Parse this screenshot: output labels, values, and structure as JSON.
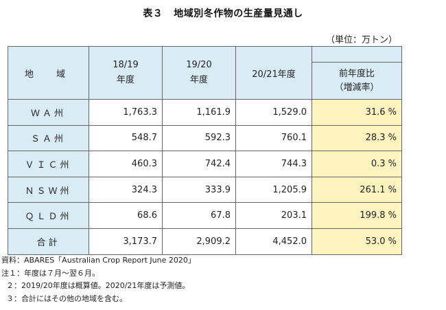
{
  "title": {
    "number": "表３",
    "text": "地域別冬作物の生産量見通し"
  },
  "unit_label": "（単位：万トン）",
  "table": {
    "headers": {
      "region": "地　域",
      "y1819_line1": "18/19",
      "y1819_line2": "年度",
      "y1920_line1": "19/20",
      "y1920_line2": "年度",
      "y2021": "20/21年度",
      "ratio_line1": "前年度比",
      "ratio_line2": "（増減率）"
    },
    "rows": [
      {
        "region": "ＷＡ州",
        "y1819": "1,763.3",
        "y1920": "1,161.9",
        "y2021": "1,529.0",
        "ratio": "31.6 %"
      },
      {
        "region": "ＳＡ州",
        "y1819": "548.7",
        "y1920": "592.3",
        "y2021": "760.1",
        "ratio": "28.3 %"
      },
      {
        "region": "ＶＩＣ州",
        "y1819": "460.3",
        "y1920": "742.4",
        "y2021": "744.3",
        "ratio": "0.3 %"
      },
      {
        "region": "ＮＳＷ州",
        "y1819": "324.3",
        "y1920": "333.9",
        "y2021": "1,205.9",
        "ratio": "261.1 %"
      },
      {
        "region": "ＱＬＤ州",
        "y1819": "68.6",
        "y1920": "67.8",
        "y2021": "203.1",
        "ratio": "199.8 %"
      },
      {
        "region": "合計",
        "y1819": "3,173.7",
        "y1920": "2,909.2",
        "y2021": "4,452.0",
        "ratio": "53.0 %"
      }
    ]
  },
  "notes": {
    "source": "資料：ABARES「Australian Crop Report June 2020」",
    "note1": "注１：年度は７月～翌６月。",
    "note2": "２：2019/20年度は概算値。2020/21年度は予測値。",
    "note3": "３：合計にはその他の地域を含む。"
  }
}
